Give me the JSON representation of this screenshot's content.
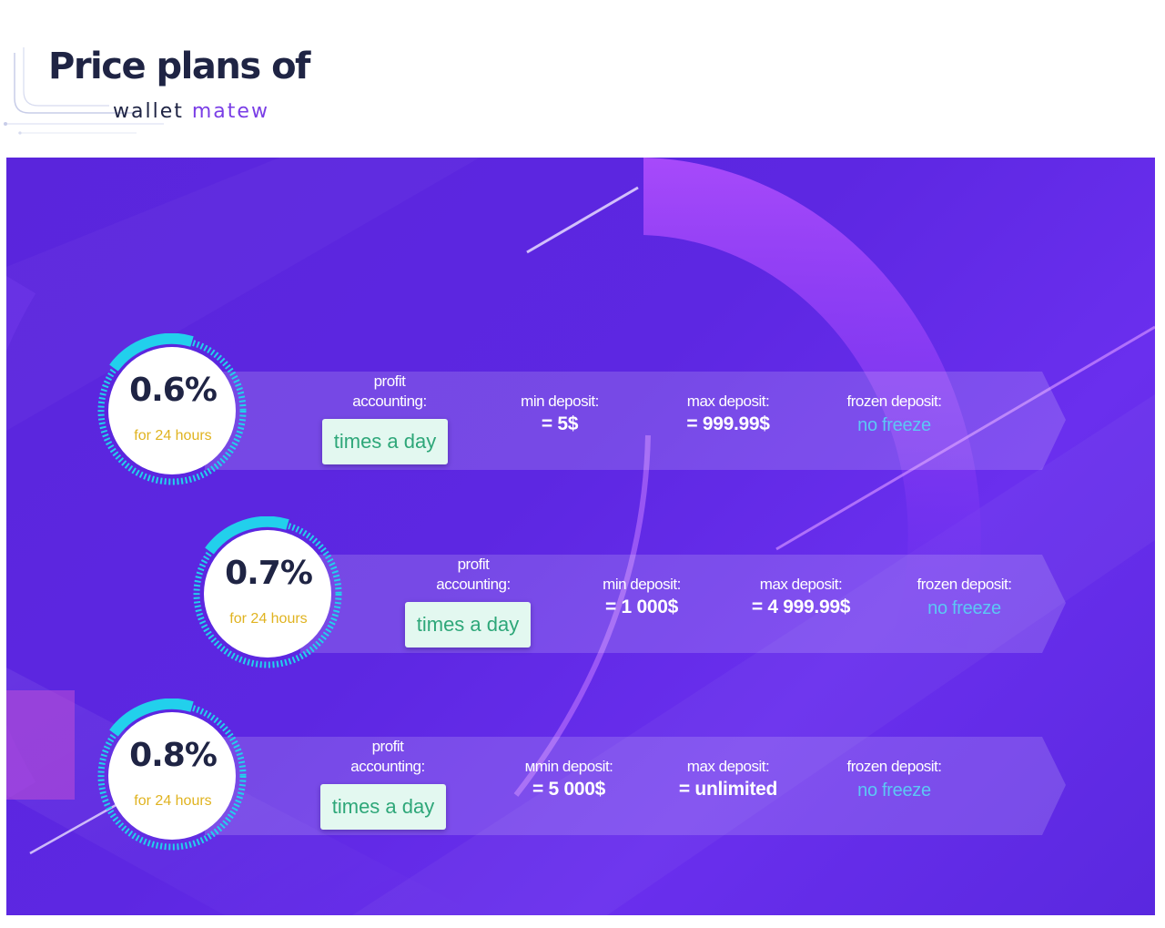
{
  "header": {
    "title": "Price plans of",
    "subtitle_prefix": "wallet",
    "subtitle_brand": "matew"
  },
  "colors": {
    "banner": "#5d27e2",
    "ring": "#22d0ec",
    "rate_text": "#1f2444",
    "period_text": "#e0b320",
    "pill_bg": "#e3f8f0",
    "pill_text": "#2ea779",
    "freeze_text": "#5cc8f4"
  },
  "plans": [
    {
      "rate": "0.6%",
      "period": "for 24 hours",
      "profit_label_1": "profit",
      "profit_label_2": "accounting:",
      "profit_value": "times a day",
      "min_label": "min deposit:",
      "min_value": "= 5$",
      "max_label": "max deposit:",
      "max_value": "= 999.99$",
      "frozen_label": "frozen deposit:",
      "frozen_value": "no freeze"
    },
    {
      "rate": "0.7%",
      "period": "for 24 hours",
      "profit_label_1": "profit",
      "profit_label_2": "accounting:",
      "profit_value": "times a day",
      "min_label": "min deposit:",
      "min_value": "= 1 000$",
      "max_label": "max deposit:",
      "max_value": "= 4 999.99$",
      "frozen_label": "frozen deposit:",
      "frozen_value": "no freeze"
    },
    {
      "rate": "0.8%",
      "period": "for 24 hours",
      "profit_label_1": "profit",
      "profit_label_2": "accounting:",
      "profit_value": "times a day",
      "min_label": "мmin deposit:",
      "min_value": "= 5 000$",
      "max_label": "max deposit:",
      "max_value": "= unlimited",
      "frozen_label": "frozen deposit:",
      "frozen_value": "no freeze"
    }
  ]
}
